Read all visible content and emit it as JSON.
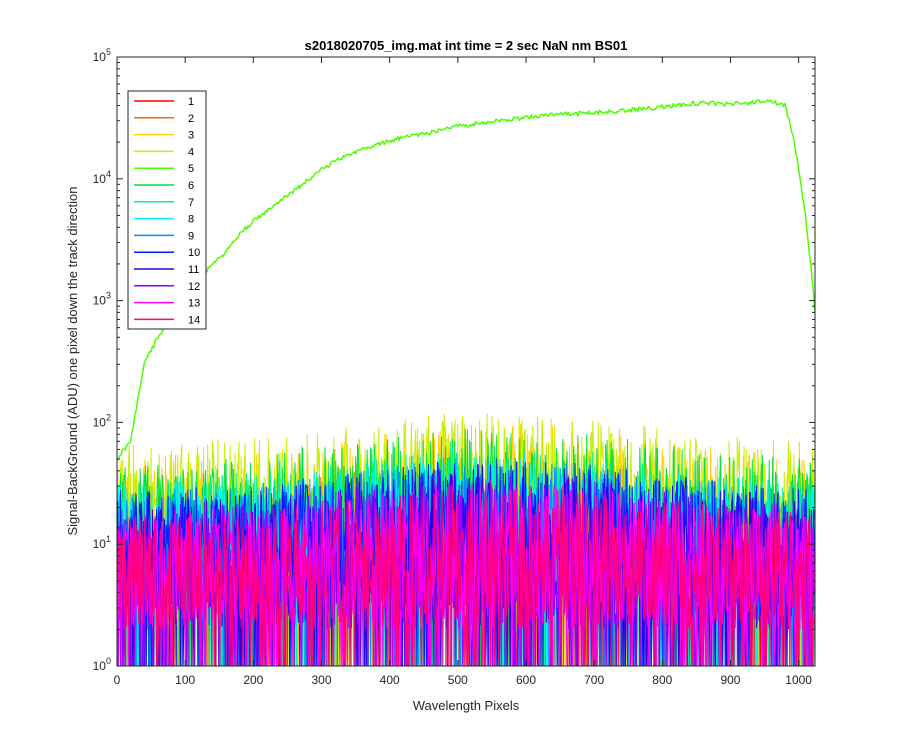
{
  "chart_data": {
    "type": "line",
    "title": "s2018020705_img.mat int time = 2 sec  NaN nm BS01",
    "xlabel": "Wavelength Pixels",
    "ylabel": "Signal-BackGround (ADU) one pixel down the track direction",
    "xlim": [
      0,
      1024
    ],
    "ylim": [
      1,
      100000
    ],
    "yscale": "log",
    "grid": false,
    "legend_position": "top-left",
    "x_ticks": [
      "0",
      "100",
      "200",
      "300",
      "400",
      "500",
      "600",
      "700",
      "800",
      "900",
      "1000"
    ],
    "x_tick_values": [
      0,
      100,
      200,
      300,
      400,
      500,
      600,
      700,
      800,
      900,
      1000
    ],
    "y_ticks": [
      {
        "base": "10",
        "exp": "0"
      },
      {
        "base": "10",
        "exp": "1"
      },
      {
        "base": "10",
        "exp": "2"
      },
      {
        "base": "10",
        "exp": "3"
      },
      {
        "base": "10",
        "exp": "4"
      },
      {
        "base": "10",
        "exp": "5"
      }
    ],
    "y_tick_values": [
      1,
      10,
      100,
      1000,
      10000,
      100000
    ],
    "series": [
      {
        "name": "1",
        "color": "#ff0000",
        "level_low": 3,
        "level_high": 28
      },
      {
        "name": "2",
        "color": "#ff6a00",
        "level_low": 4,
        "level_high": 40
      },
      {
        "name": "3",
        "color": "#ffd000",
        "level_low": 4,
        "level_high": 75
      },
      {
        "name": "4",
        "color": "#c8f000",
        "level_low": 5,
        "level_high": 95
      },
      {
        "name": "5",
        "color": "#4cff00",
        "bright": true,
        "x": [
          0,
          10,
          20,
          30,
          40,
          60,
          80,
          100,
          120,
          140,
          160,
          180,
          200,
          230,
          260,
          300,
          340,
          380,
          420,
          460,
          500,
          540,
          580,
          620,
          660,
          700,
          740,
          780,
          820,
          860,
          900,
          940,
          960,
          980,
          990,
          1000,
          1010,
          1020,
          1024
        ],
        "y": [
          50,
          60,
          70,
          150,
          300,
          500,
          700,
          1000,
          1500,
          2000,
          2500,
          3500,
          4500,
          6000,
          8000,
          12000,
          16000,
          19000,
          22000,
          24000,
          27000,
          29000,
          31000,
          33000,
          34000,
          35000,
          36000,
          38000,
          40000,
          42000,
          41000,
          43000,
          43000,
          40000,
          25000,
          12000,
          5000,
          1500,
          800
        ]
      },
      {
        "name": "6",
        "color": "#00e040",
        "level_low": 5,
        "level_high": 70
      },
      {
        "name": "7",
        "color": "#00f0a0",
        "level_low": 4,
        "level_high": 50
      },
      {
        "name": "8",
        "color": "#00f0ff",
        "level_low": 4,
        "level_high": 45
      },
      {
        "name": "9",
        "color": "#0090ff",
        "level_low": 3,
        "level_high": 40
      },
      {
        "name": "10",
        "color": "#0020ff",
        "level_low": 3,
        "level_high": 40
      },
      {
        "name": "11",
        "color": "#3000e0",
        "level_low": 2,
        "level_high": 35
      },
      {
        "name": "12",
        "color": "#9000ff",
        "level_low": 2,
        "level_high": 30
      },
      {
        "name": "13",
        "color": "#ff00ff",
        "level_low": 2,
        "level_high": 25
      },
      {
        "name": "14",
        "color": "#ff0080",
        "level_low": 2,
        "level_high": 25
      }
    ]
  }
}
